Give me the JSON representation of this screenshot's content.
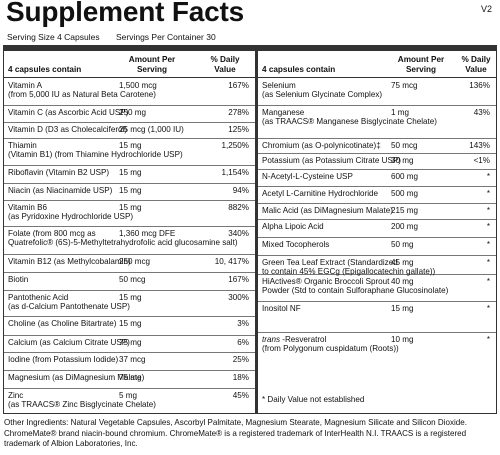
{
  "title": "Supplement Facts",
  "version": "V2",
  "serving_size": "Serving Size  4 Capsules",
  "servings_per_container": "Servings Per Container 30",
  "headers": {
    "name": "4 capsules contain",
    "amount_line1": "Amount Per",
    "amount_line2": "Serving",
    "dv_line1": "% Daily",
    "dv_line2": "Value"
  },
  "left_rows": [
    {
      "name": "Vitamin A",
      "sub": "(from 5,000 IU as Natural Beta Carotene)",
      "amount": "1,500 mcg",
      "dv": "167%"
    },
    {
      "name": "Vitamin C (as Ascorbic Acid USP)",
      "sub": "",
      "amount": "250 mg",
      "dv": "278%"
    },
    {
      "name": "Vitamin D (D3 as Cholecalciferol)",
      "sub": "",
      "amount": "25 mcg (1,000 IU)",
      "dv": "125%"
    },
    {
      "name": "Thiamin",
      "sub": "(Vitamin B1) (from Thiamine Hydrochloride USP)",
      "amount": "15 mg",
      "dv": "1,250%"
    },
    {
      "name": "Riboflavin (Vitamin B2 USP)",
      "sub": "",
      "amount": "15 mg",
      "dv": "1,154%"
    },
    {
      "name": "Niacin (as Niacinamide USP)",
      "sub": "",
      "amount": "15 mg",
      "dv": "94%"
    },
    {
      "name": "Vitamin B6",
      "sub": "(as Pyridoxine Hydrochloride USP)",
      "amount": "15 mg",
      "dv": "882%"
    },
    {
      "name": "Folate (from 800 mcg as",
      "sub": "Quatrefolic® (6S)-5-Methyltetrahydrofolic acid glucosamine salt)",
      "amount": "1,360 mcg DFE",
      "dv": "340%"
    },
    {
      "name": "Vitamin B12 (as Methylcobalamin)",
      "sub": "",
      "amount": "250 mcg",
      "dv": "10, 417%"
    },
    {
      "name": "Biotin",
      "sub": "",
      "amount": "50 mcg",
      "dv": "167%"
    },
    {
      "name": "Pantothenic Acid",
      "sub": "(as d-Calcium Pantothenate USP)",
      "amount": "15 mg",
      "dv": "300%"
    },
    {
      "name": "Choline (as Choline Bitartrate)",
      "sub": "",
      "amount": "15 mg",
      "dv": "3%"
    },
    {
      "name": "Calcium (as Calcium Citrate USP)",
      "sub": "",
      "amount": "75 mg",
      "dv": "6%"
    },
    {
      "name": "Iodine (from Potassium Iodide)",
      "sub": "",
      "amount": "37 mcg",
      "dv": "25%"
    },
    {
      "name": "Magnesium (as DiMagnesium Malate)",
      "sub": "",
      "amount": "75 mg",
      "dv": "18%"
    },
    {
      "name": "Zinc",
      "sub": "(as TRAACS® Zinc Bisglycinate Chelate)",
      "amount": "5 mg",
      "dv": "45%"
    }
  ],
  "right_rows": [
    {
      "name": "Selenium",
      "sub": "(as Selenium Glycinate Complex)",
      "amount": "75 mcg",
      "dv": "136%"
    },
    {
      "name": "Manganese",
      "sub": "(as TRAACS® Manganese Bisglycinate Chelate)",
      "amount": "1 mg",
      "dv": "43%"
    },
    {
      "name": "Chromium (as O-polynicotinate)‡",
      "sub": "",
      "amount": "50 mcg",
      "dv": "143%"
    },
    {
      "name": "Potassium (as Potassium Citrate USP)",
      "sub": "",
      "amount": "30 mg",
      "dv": "<1%"
    },
    {
      "name": "N-Acetyl-L-Cysteine USP",
      "sub": "",
      "amount": "600 mg",
      "dv": "*"
    },
    {
      "name": "Acetyl L-Carnitine Hydrochloride",
      "sub": "",
      "amount": "500 mg",
      "dv": "*"
    },
    {
      "name": "Malic Acid (as DiMagnesium Malate)",
      "sub": "",
      "amount": "215 mg",
      "dv": "*"
    },
    {
      "name": "Alpha Lipoic Acid",
      "sub": "",
      "amount": "200 mg",
      "dv": "*"
    },
    {
      "name": "Mixed Tocopherols",
      "sub": "",
      "amount": "50 mg",
      "dv": "*"
    },
    {
      "name": "Green Tea Leaf Extract  (Standardized",
      "sub": "to contain 45% EGCg (Epigallocatechin gallate))",
      "amount": "45 mg",
      "dv": "*"
    },
    {
      "name": "HiActives® Organic Broccoli Sprout",
      "sub": "Powder (Std to contain Sulforaphane Glucosinolate)",
      "amount": "40 mg",
      "dv": "*"
    },
    {
      "name": "Inositol NF",
      "sub": "",
      "amount": "15 mg",
      "dv": "*"
    },
    {
      "name": "trans -Resveratrol",
      "sub": "(from Polygonum cuspidatum (Roots))",
      "amount": "10 mg",
      "dv": "*"
    }
  ],
  "dv_note": "*  Daily Value not established",
  "footer": {
    "line1": "Other Ingredients: Natural Vegetable Capsules, Ascorbyl Palmitate, Magnesium Stearate, Magnesium Silicate and Silicon Dioxide.",
    "line2": "ChromeMate® brand niacin-bound chromium. ChromeMate® is a registered trademark of InterHealth N.I. TRAACS is a registered",
    "line3": "trademark of Albion Laboratories, Inc."
  }
}
